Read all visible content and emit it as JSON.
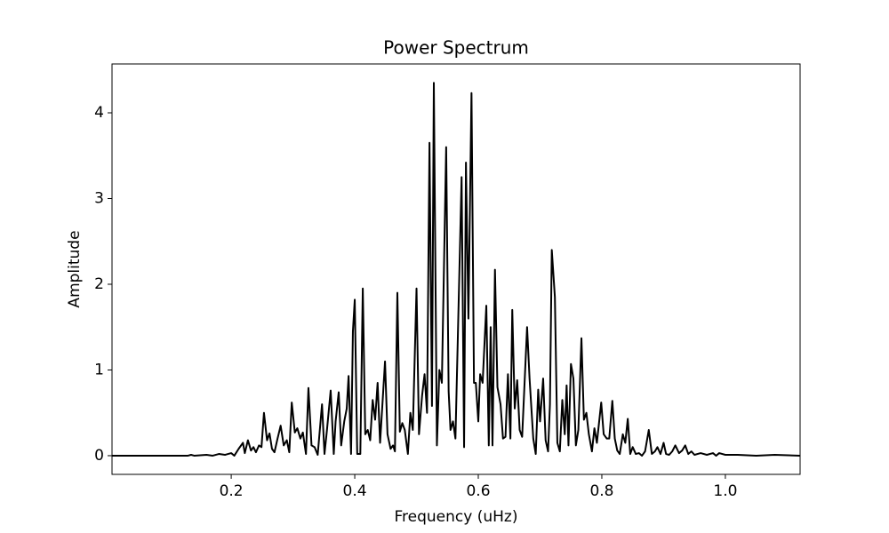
{
  "chart_data": {
    "type": "line",
    "title": "Power Spectrum",
    "xlabel": "Frequency (uHz)",
    "ylabel": "Amplitude",
    "color": "#000000",
    "x": [
      0.007,
      0.13,
      0.135,
      0.14,
      0.16,
      0.17,
      0.18,
      0.19,
      0.2,
      0.205,
      0.212,
      0.219,
      0.222,
      0.227,
      0.232,
      0.236,
      0.24,
      0.245,
      0.249,
      0.253,
      0.258,
      0.262,
      0.266,
      0.27,
      0.275,
      0.28,
      0.285,
      0.29,
      0.294,
      0.298,
      0.303,
      0.307,
      0.312,
      0.316,
      0.321,
      0.325,
      0.33,
      0.335,
      0.34,
      0.347,
      0.351,
      0.355,
      0.361,
      0.366,
      0.369,
      0.374,
      0.378,
      0.383,
      0.387,
      0.39,
      0.394,
      0.397,
      0.4,
      0.404,
      0.409,
      0.413,
      0.417,
      0.421,
      0.425,
      0.429,
      0.433,
      0.437,
      0.441,
      0.449,
      0.453,
      0.458,
      0.462,
      0.465,
      0.469,
      0.473,
      0.477,
      0.481,
      0.486,
      0.49,
      0.494,
      0.5,
      0.504,
      0.509,
      0.513,
      0.517,
      0.521,
      0.525,
      0.528,
      0.533,
      0.537,
      0.541,
      0.548,
      0.552,
      0.555,
      0.559,
      0.563,
      0.573,
      0.577,
      0.58,
      0.584,
      0.589,
      0.593,
      0.596,
      0.6,
      0.603,
      0.607,
      0.613,
      0.617,
      0.62,
      0.623,
      0.627,
      0.631,
      0.636,
      0.64,
      0.644,
      0.648,
      0.652,
      0.655,
      0.659,
      0.663,
      0.667,
      0.671,
      0.679,
      0.683,
      0.689,
      0.693,
      0.697,
      0.7,
      0.705,
      0.709,
      0.713,
      0.716,
      0.719,
      0.724,
      0.728,
      0.732,
      0.736,
      0.74,
      0.743,
      0.746,
      0.75,
      0.754,
      0.758,
      0.762,
      0.767,
      0.771,
      0.775,
      0.779,
      0.784,
      0.788,
      0.792,
      0.799,
      0.803,
      0.808,
      0.812,
      0.817,
      0.821,
      0.825,
      0.829,
      0.834,
      0.838,
      0.842,
      0.846,
      0.85,
      0.855,
      0.86,
      0.865,
      0.87,
      0.876,
      0.881,
      0.886,
      0.89,
      0.895,
      0.9,
      0.904,
      0.909,
      0.914,
      0.919,
      0.925,
      0.93,
      0.935,
      0.94,
      0.945,
      0.95,
      0.96,
      0.97,
      0.98,
      0.985,
      0.99,
      1.0,
      1.02,
      1.05,
      1.08,
      1.121
    ],
    "values": [
      0,
      0,
      0.01,
      0,
      0.01,
      0,
      0.02,
      0.01,
      0.03,
      0,
      0.08,
      0.15,
      0.03,
      0.18,
      0.06,
      0.1,
      0.04,
      0.12,
      0.1,
      0.5,
      0.18,
      0.26,
      0.08,
      0.04,
      0.2,
      0.35,
      0.12,
      0.18,
      0.04,
      0.62,
      0.27,
      0.32,
      0.2,
      0.27,
      0.02,
      0.79,
      0.12,
      0.1,
      0.01,
      0.6,
      0.02,
      0.3,
      0.76,
      0.02,
      0.4,
      0.74,
      0.12,
      0.4,
      0.55,
      0.93,
      0.02,
      1.45,
      1.82,
      0.02,
      0.02,
      1.95,
      0.25,
      0.3,
      0.18,
      0.65,
      0.42,
      0.85,
      0.15,
      1.1,
      0.25,
      0.08,
      0.12,
      0.05,
      1.9,
      0.28,
      0.38,
      0.3,
      0.02,
      0.5,
      0.3,
      1.95,
      0.25,
      0.7,
      0.95,
      0.5,
      3.65,
      0.58,
      4.35,
      0.12,
      1.0,
      0.85,
      3.6,
      0.75,
      0.3,
      0.4,
      0.2,
      3.25,
      0.1,
      3.42,
      1.6,
      4.23,
      0.85,
      0.85,
      0.4,
      0.95,
      0.85,
      1.75,
      0.12,
      1.5,
      0.12,
      2.17,
      0.8,
      0.6,
      0.2,
      0.22,
      0.95,
      0.2,
      1.7,
      0.55,
      0.88,
      0.3,
      0.22,
      1.5,
      0.9,
      0.2,
      0.02,
      0.77,
      0.4,
      0.9,
      0.18,
      0.05,
      0.6,
      2.4,
      1.85,
      0.15,
      0.05,
      0.65,
      0.25,
      0.82,
      0.12,
      1.07,
      0.9,
      0.12,
      0.3,
      1.37,
      0.42,
      0.5,
      0.25,
      0.05,
      0.32,
      0.15,
      0.62,
      0.25,
      0.2,
      0.2,
      0.64,
      0.2,
      0.06,
      0.02,
      0.25,
      0.15,
      0.43,
      0.02,
      0.1,
      0.02,
      0.03,
      0,
      0.05,
      0.3,
      0.02,
      0.05,
      0.1,
      0.02,
      0.15,
      0.02,
      0.01,
      0.05,
      0.12,
      0.03,
      0.06,
      0.12,
      0.02,
      0.05,
      0.01,
      0.03,
      0.01,
      0.03,
      0,
      0.03,
      0.01,
      0.01,
      0,
      0.01,
      0
    ],
    "xlim": [
      0.007,
      1.121
    ],
    "ylim": [
      -0.218,
      4.57
    ],
    "xticks": [
      0.2,
      0.4,
      0.6,
      0.8,
      {
        "value": 1,
        "label": "1.0"
      }
    ],
    "yticks": [
      0,
      1,
      2,
      3,
      4
    ],
    "grid": false
  }
}
